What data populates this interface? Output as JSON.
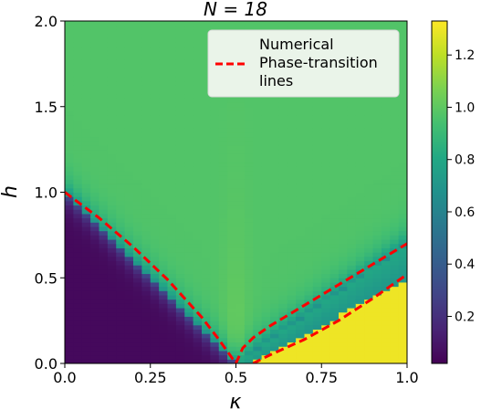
{
  "chart_data": {
    "type": "heatmap",
    "title": "N = 18",
    "xlabel": "κ",
    "ylabel": "h",
    "xlim": [
      0.0,
      1.0
    ],
    "ylim": [
      0.0,
      2.0
    ],
    "x_ticks": [
      "0.0",
      "0.25",
      "0.5",
      "0.75",
      "1.0"
    ],
    "y_ticks": [
      "0.0",
      "0.5",
      "1.0",
      "1.5",
      "2.0"
    ],
    "grid": false,
    "legend": {
      "placement": "top-right",
      "entries": [
        "Numerical Phase-transition lines"
      ]
    },
    "legend_lines": [
      "Numerical",
      "Phase-transition",
      "lines"
    ],
    "colormap": "viridis",
    "colorbar": {
      "range": [
        0.02,
        1.33
      ],
      "ticks": [
        "0.2",
        "0.4",
        "0.6",
        "0.8",
        "1.0",
        "1.2"
      ],
      "tick_values": [
        0.2,
        0.4,
        0.6,
        0.8,
        1.0,
        1.2
      ]
    },
    "grid_resolution": {
      "kappa_cells": 40,
      "h_cells": 80
    },
    "regions": [
      {
        "name": "low-h left phase",
        "kappa": [
          0.0,
          0.5
        ],
        "approx_value": 0.1
      },
      {
        "name": "high-h phase",
        "approx_value": 0.97
      },
      {
        "name": "low-h right phase",
        "kappa": [
          0.5,
          1.0
        ],
        "approx_value": 1.3
      }
    ],
    "series": [
      {
        "name": "Numerical Phase-transition lines",
        "style": "dashed",
        "color": "#ff0000",
        "x": [
          0.0,
          0.1,
          0.2,
          0.3,
          0.4,
          0.45,
          0.5
        ],
        "y": [
          1.0,
          0.85,
          0.68,
          0.49,
          0.27,
          0.14,
          0.0
        ]
      },
      {
        "name": "",
        "style": "dashed",
        "color": "#ff0000",
        "x": [
          0.5,
          0.52,
          0.55,
          0.6,
          0.7,
          0.8,
          0.9,
          1.0
        ],
        "y": [
          0.0,
          0.09,
          0.15,
          0.22,
          0.34,
          0.46,
          0.58,
          0.7
        ]
      },
      {
        "name": "",
        "style": "dashed",
        "color": "#ff0000",
        "x": [
          0.55,
          0.6,
          0.7,
          0.8,
          0.9,
          1.0
        ],
        "y": [
          0.0,
          0.05,
          0.14,
          0.25,
          0.38,
          0.52
        ]
      }
    ]
  }
}
